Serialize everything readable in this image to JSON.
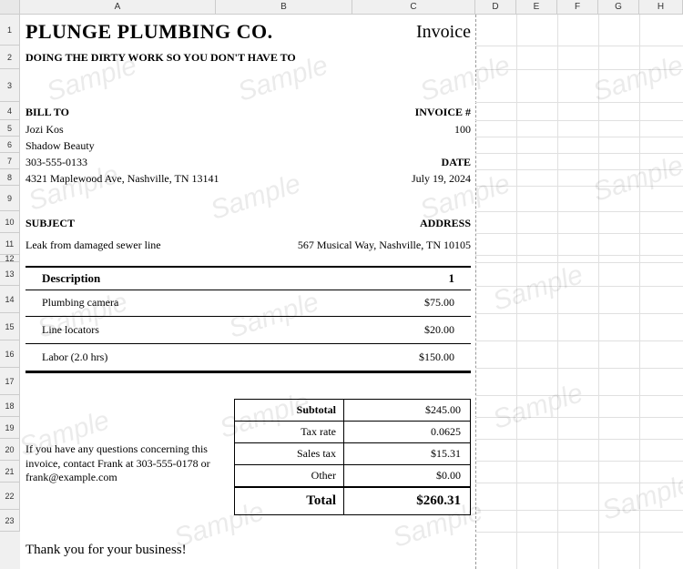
{
  "columns": {
    "labels": [
      "A",
      "B",
      "C",
      "D",
      "E",
      "F",
      "G",
      "H"
    ],
    "widths": [
      215,
      150,
      135,
      45,
      45,
      45,
      45,
      48
    ]
  },
  "rows": {
    "heights": [
      34,
      26,
      36,
      20,
      18,
      18,
      18,
      18,
      28,
      24,
      24,
      8,
      26,
      30,
      30,
      30,
      30,
      24,
      24,
      24,
      24,
      30,
      24
    ]
  },
  "watermark_text": "Sample",
  "company": {
    "name": "PLUNGE PLUMBING CO.",
    "tagline": "DOING THE DIRTY WORK SO YOU DON'T HAVE TO"
  },
  "doc_label": "Invoice",
  "bill_to": {
    "heading": "BILL TO",
    "name": "Jozi Kos",
    "company": "Shadow Beauty",
    "phone": "303-555-0133",
    "address": "4321 Maplewood Ave, Nashville, TN 13141"
  },
  "invoice": {
    "number_label": "INVOICE #",
    "number": "100",
    "date_label": "DATE",
    "date": "July 19, 2024"
  },
  "subject": {
    "heading": "SUBJECT",
    "value": "Leak from damaged sewer line"
  },
  "service_address": {
    "heading": "ADDRESS",
    "value": "567 Musical Way, Nashville, TN 10105"
  },
  "items": {
    "header_desc": "Description",
    "header_amount": "1",
    "rows": [
      {
        "desc": "Plumbing camera",
        "amount": "$75.00"
      },
      {
        "desc": "Line locators",
        "amount": "$20.00"
      },
      {
        "desc": "Labor (2.0 hrs)",
        "amount": "$150.00"
      }
    ]
  },
  "totals": {
    "subtotal_label": "Subtotal",
    "subtotal": "$245.00",
    "taxrate_label": "Tax rate",
    "taxrate": "0.0625",
    "salestax_label": "Sales tax",
    "salestax": "$15.31",
    "other_label": "Other",
    "other": "$0.00",
    "total_label": "Total",
    "total": "$260.31"
  },
  "note": "If you have any questions concerning this invoice, contact Frank at 303-555-0178 or frank@example.com",
  "thanks": "Thank you for your business!",
  "colors": {
    "grid": "#e0e0e0",
    "header_bg": "#f0f0f0",
    "watermark": "rgba(0,0,0,0.08)"
  }
}
